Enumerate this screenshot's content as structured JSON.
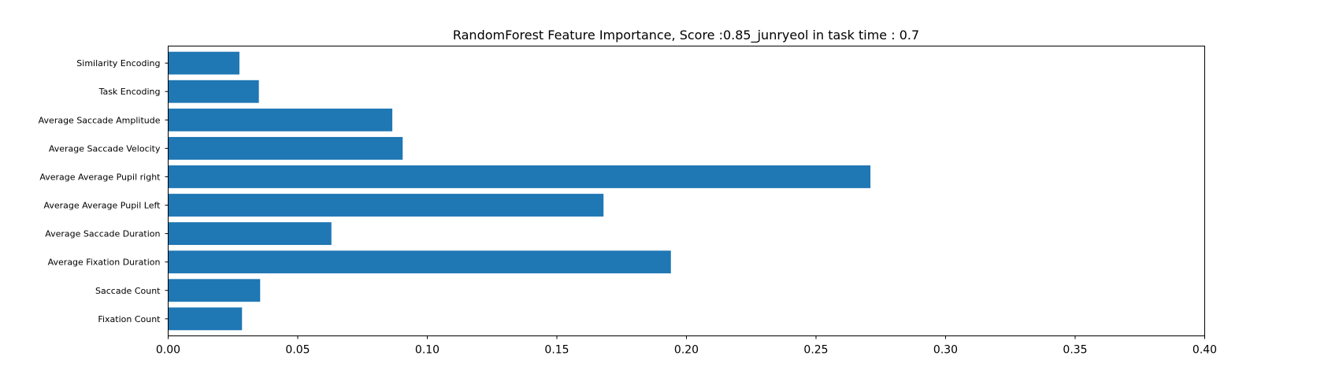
{
  "chart_data": {
    "type": "bar",
    "orientation": "horizontal",
    "title": "RandomForest Feature Importance, Score :0.85_junryeol in task time : 0.7",
    "xlabel": "",
    "ylabel": "",
    "xlim": [
      0.0,
      0.4
    ],
    "x_ticks": [
      0.0,
      0.05,
      0.1,
      0.15,
      0.2,
      0.25,
      0.3,
      0.35,
      0.4
    ],
    "x_tick_labels": [
      "0.00",
      "0.05",
      "0.10",
      "0.15",
      "0.20",
      "0.25",
      "0.30",
      "0.35",
      "0.40"
    ],
    "categories": [
      "Fixation Count",
      "Saccade Count",
      "Average Fixation Duration",
      "Average Saccade Duration",
      "Average Average Pupil Left",
      "Average Average Pupil right",
      "Average Saccade Velocity",
      "Average Saccade Amplitude",
      "Task Encoding",
      "Similarity Encoding"
    ],
    "values": [
      0.0285,
      0.0355,
      0.194,
      0.063,
      0.168,
      0.271,
      0.0905,
      0.0865,
      0.035,
      0.0275
    ],
    "bar_color": "#1f77b4",
    "grid": false,
    "legend": "none"
  }
}
